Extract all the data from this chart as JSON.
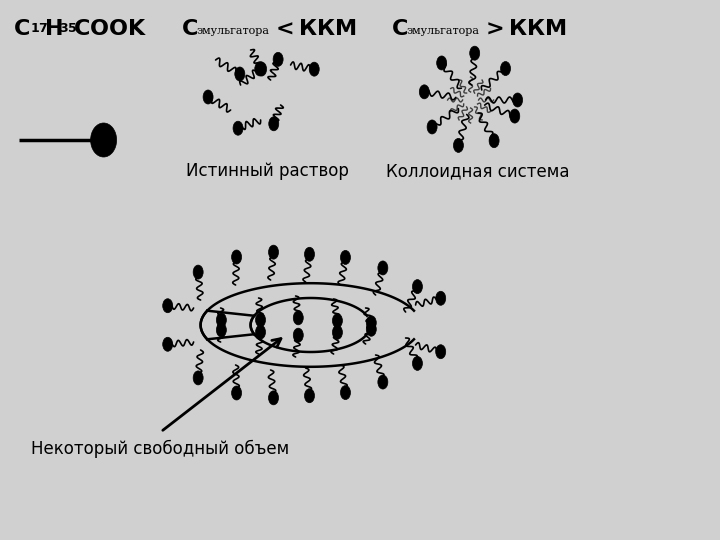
{
  "bg_color": "#d0d0d0",
  "main_bg": "#ffffff",
  "label1": "Истинный раствор",
  "label2": "Коллоидная система",
  "label3": "Некоторый свободный объем",
  "text_color": "#000000",
  "molecule_color": "#000000"
}
